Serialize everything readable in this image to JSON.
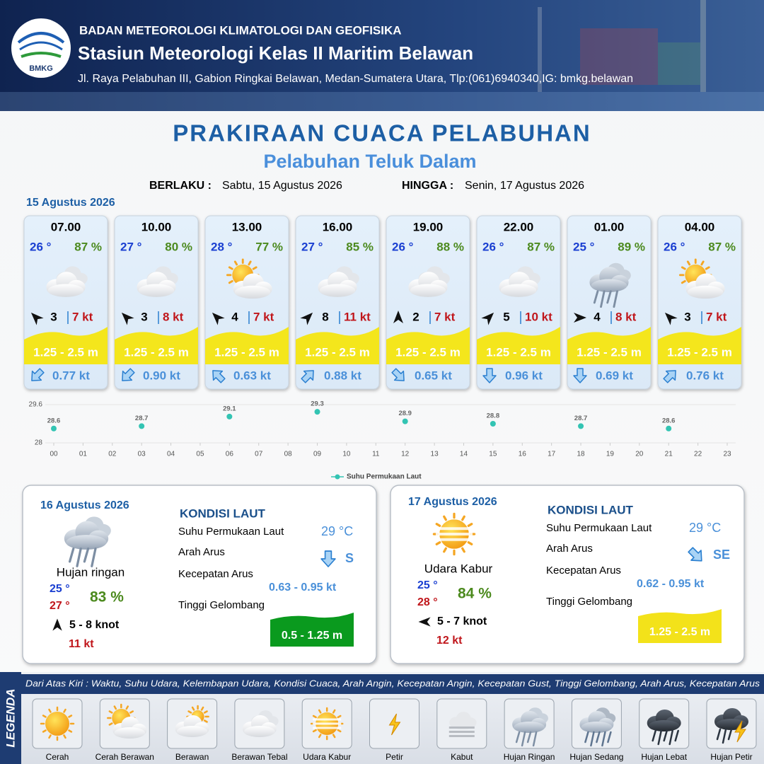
{
  "header": {
    "agency": "BADAN METEOROLOGI KLIMATOLOGI DAN GEOFISIKA",
    "station": "Stasiun Meteorologi Kelas II Maritim Belawan",
    "address": "Jl. Raya Pelabuhan III, Gabion Ringkai Belawan, Medan-Sumatera Utara, Tlp:(061)6940340,IG: bmkg.belawan",
    "logo": "BMKG"
  },
  "title": "PRAKIRAAN CUACA PELABUHAN",
  "subtitle": "Pelabuhan Teluk Dalam",
  "validity": {
    "from_label": "BERLAKU :",
    "from": "Sabtu, 15 Agustus 2026",
    "to_label": "HINGGA :",
    "to": "Senin, 17 Agustus 2026"
  },
  "day1": {
    "date": "15 Agustus 2026",
    "slots": [
      {
        "time": "07.00",
        "temp": "26 °",
        "humidity": "87 %",
        "icon": "berawan_tebal",
        "wind_deg": 315,
        "wind": "3",
        "gust": "7 kt",
        "wave": "1.25 - 2.5 m",
        "current_deg": 225,
        "current": "0.77 kt"
      },
      {
        "time": "10.00",
        "temp": "27 °",
        "humidity": "80 %",
        "icon": "berawan_tebal",
        "wind_deg": 315,
        "wind": "3",
        "gust": "8 kt",
        "wave": "1.25 - 2.5 m",
        "current_deg": 225,
        "current": "0.90 kt"
      },
      {
        "time": "13.00",
        "temp": "28 °",
        "humidity": "77 %",
        "icon": "cerah_berawan",
        "wind_deg": 315,
        "wind": "4",
        "gust": "7 kt",
        "wave": "1.25 - 2.5 m",
        "current_deg": 315,
        "current": "0.63 kt"
      },
      {
        "time": "16.00",
        "temp": "27 °",
        "humidity": "85 %",
        "icon": "berawan_tebal",
        "wind_deg": 45,
        "wind": "8",
        "gust": "11 kt",
        "wave": "1.25 - 2.5 m",
        "current_deg": 45,
        "current": "0.88 kt"
      },
      {
        "time": "19.00",
        "temp": "26 °",
        "humidity": "88 %",
        "icon": "berawan_tebal",
        "wind_deg": 0,
        "wind": "2",
        "gust": "7 kt",
        "wave": "1.25 - 2.5 m",
        "current_deg": 135,
        "current": "0.65 kt"
      },
      {
        "time": "22.00",
        "temp": "26 °",
        "humidity": "87 %",
        "icon": "berawan_tebal",
        "wind_deg": 45,
        "wind": "5",
        "gust": "10 kt",
        "wave": "1.25 - 2.5 m",
        "current_deg": 180,
        "current": "0.96 kt"
      },
      {
        "time": "01.00",
        "temp": "25 °",
        "humidity": "89 %",
        "icon": "hujan_ringan",
        "wind_deg": 90,
        "wind": "4",
        "gust": "8 kt",
        "wave": "1.25 - 2.5 m",
        "current_deg": 180,
        "current": "0.69 kt"
      },
      {
        "time": "04.00",
        "temp": "26 °",
        "humidity": "87 %",
        "icon": "cerah_berawan",
        "wind_deg": 315,
        "wind": "3",
        "gust": "7 kt",
        "wave": "1.25 - 2.5 m",
        "current_deg": 45,
        "current": "0.76 kt"
      }
    ]
  },
  "chart_data": {
    "type": "scatter",
    "x": [
      0,
      3,
      6,
      9,
      12,
      15,
      18,
      21
    ],
    "series": [
      {
        "name": "Suhu Permukaan Laut",
        "color": "#33c4b3",
        "values": [
          28.6,
          28.7,
          29.1,
          29.3,
          28.9,
          28.8,
          28.7,
          28.6
        ]
      }
    ],
    "ylim": [
      28,
      29.6
    ],
    "yticks": [
      28,
      29.6
    ],
    "xlim": [
      0,
      23
    ],
    "xticks": [
      {
        "value": 0,
        "label": "00"
      },
      {
        "value": 1,
        "label": "01"
      },
      {
        "value": 2,
        "label": "02"
      },
      {
        "value": 3,
        "label": "03"
      },
      {
        "value": 4,
        "label": "04"
      },
      {
        "value": 5,
        "label": "05"
      },
      {
        "value": 6,
        "label": "06"
      },
      {
        "value": 7,
        "label": "07"
      },
      {
        "value": 8,
        "label": "08"
      },
      {
        "value": 9,
        "label": "09"
      },
      {
        "value": 10,
        "label": "10"
      },
      {
        "value": 11,
        "label": "11"
      },
      {
        "value": 12,
        "label": "12"
      },
      {
        "value": 13,
        "label": "13"
      },
      {
        "value": 14,
        "label": "14"
      },
      {
        "value": 15,
        "label": "15"
      },
      {
        "value": 16,
        "label": "16"
      },
      {
        "value": 17,
        "label": "17"
      },
      {
        "value": 18,
        "label": "18"
      },
      {
        "value": 19,
        "label": "19"
      },
      {
        "value": 20,
        "label": "20"
      },
      {
        "value": 21,
        "label": "21"
      },
      {
        "value": 22,
        "label": "22"
      },
      {
        "value": 23,
        "label": "23"
      }
    ],
    "grid": true
  },
  "days": [
    {
      "date": "16 Agustus 2026",
      "icon": "hujan_ringan",
      "condition": "Hujan ringan",
      "temp_min": "25 °",
      "temp_max": "27 °",
      "humidity": "83 %",
      "wind_deg": 0,
      "wind": "5 - 8 knot",
      "gust": "11 kt",
      "sea": {
        "title": "KONDISI LAUT",
        "sst_label": "Suhu Permukaan Laut",
        "sst": "29 °C",
        "dir_label": "Arah Arus",
        "current_deg": 180,
        "dir": "S",
        "speed_label": "Kecepatan Arus",
        "speed": "0.63 - 0.95 kt",
        "wave_label": "Tinggi Gelombang",
        "wave": "0.5 - 1.25 m",
        "wave_color": "#0a9a1e"
      }
    },
    {
      "date": "17 Agustus 2026",
      "icon": "udara_kabur",
      "condition": "Udara Kabur",
      "temp_min": "25 °",
      "temp_max": "28 °",
      "humidity": "84 %",
      "wind_deg": 270,
      "wind": "5 - 7 knot",
      "gust": "12 kt",
      "sea": {
        "title": "KONDISI LAUT",
        "sst_label": "Suhu Permukaan Laut",
        "sst": "29 °C",
        "dir_label": "Arah Arus",
        "current_deg": 135,
        "dir": "SE",
        "speed_label": "Kecepatan Arus",
        "speed": "0.62 - 0.95 kt",
        "wave_label": "Tinggi Gelombang",
        "wave": "1.25 - 2.5 m",
        "wave_color": "#f3e21a"
      }
    }
  ],
  "legend": {
    "title": "LEGENDA",
    "description": "Dari Atas Kiri : Waktu, Suhu Udara, Kelembapan Udara, Kondisi Cuaca, Arah Angin, Kecepatan Angin, Kecepatan Gust, Tinggi Gelombang, Arah Arus, Kecepatan Arus",
    "items": [
      {
        "icon": "cerah",
        "name": "Cerah"
      },
      {
        "icon": "cerah_berawan",
        "name": "Cerah Berawan"
      },
      {
        "icon": "berawan",
        "name": "Berawan"
      },
      {
        "icon": "berawan_tebal",
        "name": "Berawan Tebal"
      },
      {
        "icon": "udara_kabur",
        "name": "Udara Kabur"
      },
      {
        "icon": "petir",
        "name": "Petir"
      },
      {
        "icon": "kabut",
        "name": "Kabut"
      },
      {
        "icon": "hujan_ringan",
        "name": "Hujan Ringan"
      },
      {
        "icon": "hujan_sedang",
        "name": "Hujan Sedang"
      },
      {
        "icon": "hujan_lebat",
        "name": "Hujan Lebat"
      },
      {
        "icon": "hujan_petir",
        "name": "Hujan Petir"
      }
    ]
  }
}
